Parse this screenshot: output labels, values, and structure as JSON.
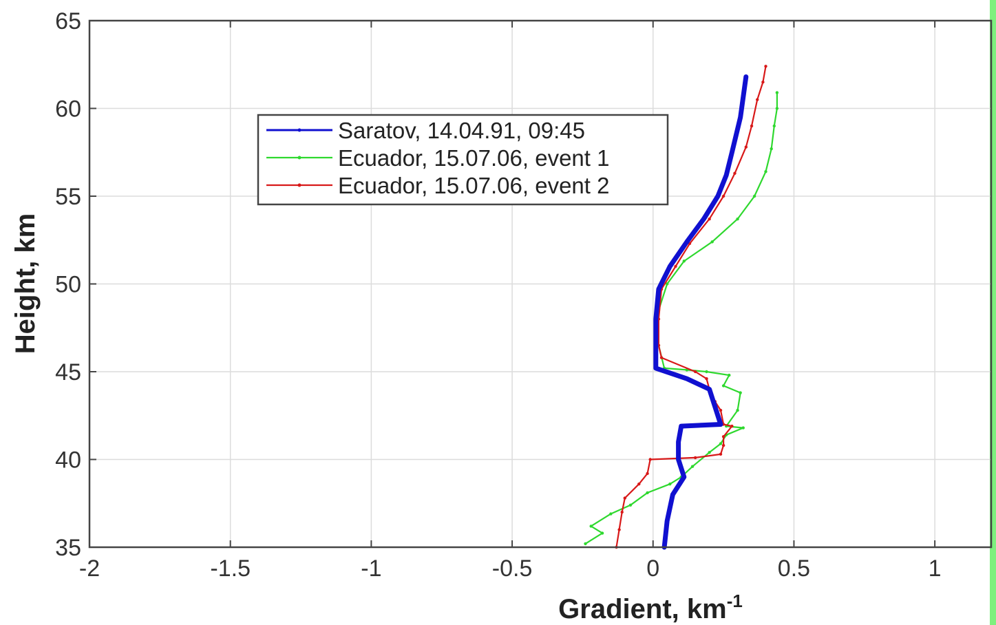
{
  "chart_data": {
    "type": "line",
    "xlabel": "Gradient, km",
    "xlabel_superscript": "-1",
    "ylabel": "Height, km",
    "xlim": [
      -2,
      1.2
    ],
    "ylim": [
      35,
      65
    ],
    "xticks": [
      -2,
      -1.5,
      -1,
      -0.5,
      0,
      0.5,
      1
    ],
    "xtick_labels": [
      "-2",
      "-1.5",
      "-1",
      "-0.5",
      "0",
      "0.5",
      "1"
    ],
    "yticks": [
      35,
      40,
      45,
      50,
      55,
      60,
      65
    ],
    "ytick_labels": [
      "35",
      "40",
      "45",
      "50",
      "55",
      "60",
      "65"
    ],
    "grid": true,
    "legend_position": "upper-left-center",
    "series": [
      {
        "name": "Saratov, 14.04.91, 09:45",
        "color": "#1010d0",
        "points": [
          [
            0.04,
            35.0
          ],
          [
            0.05,
            36.5
          ],
          [
            0.07,
            38.0
          ],
          [
            0.11,
            39.0
          ],
          [
            0.09,
            40.0
          ],
          [
            0.09,
            41.0
          ],
          [
            0.1,
            41.9
          ],
          [
            0.24,
            42.0
          ],
          [
            0.22,
            43.0
          ],
          [
            0.2,
            44.0
          ],
          [
            0.12,
            44.6
          ],
          [
            0.01,
            45.2
          ],
          [
            0.01,
            46.5
          ],
          [
            0.01,
            48.0
          ],
          [
            0.02,
            49.7
          ],
          [
            0.06,
            51.0
          ],
          [
            0.12,
            52.4
          ],
          [
            0.18,
            53.7
          ],
          [
            0.23,
            55.0
          ],
          [
            0.26,
            56.2
          ],
          [
            0.28,
            57.5
          ],
          [
            0.31,
            59.5
          ],
          [
            0.33,
            61.8
          ]
        ]
      },
      {
        "name": "Ecuador, 15.07.06, event 1",
        "color": "#2ed82e",
        "points": [
          [
            -0.24,
            35.2
          ],
          [
            -0.18,
            35.8
          ],
          [
            -0.22,
            36.2
          ],
          [
            -0.15,
            36.9
          ],
          [
            -0.08,
            37.4
          ],
          [
            -0.02,
            38.1
          ],
          [
            0.06,
            38.6
          ],
          [
            0.1,
            39.0
          ],
          [
            0.14,
            39.6
          ],
          [
            0.2,
            40.4
          ],
          [
            0.24,
            40.9
          ],
          [
            0.26,
            41.4
          ],
          [
            0.32,
            41.8
          ],
          [
            0.26,
            41.9
          ],
          [
            0.3,
            42.8
          ],
          [
            0.31,
            43.8
          ],
          [
            0.25,
            44.2
          ],
          [
            0.27,
            44.8
          ],
          [
            0.19,
            45.0
          ],
          [
            0.12,
            45.1
          ],
          [
            0.04,
            45.2
          ],
          [
            0.02,
            46.5
          ],
          [
            0.02,
            48.5
          ],
          [
            0.05,
            50.0
          ],
          [
            0.11,
            51.3
          ],
          [
            0.21,
            52.4
          ],
          [
            0.3,
            53.7
          ],
          [
            0.36,
            55.0
          ],
          [
            0.4,
            56.4
          ],
          [
            0.42,
            57.7
          ],
          [
            0.43,
            59.0
          ],
          [
            0.44,
            60.0
          ],
          [
            0.44,
            60.9
          ]
        ]
      },
      {
        "name": "Ecuador, 15.07.06, event 2",
        "color": "#d81818",
        "points": [
          [
            -0.13,
            35.0
          ],
          [
            -0.12,
            36.0
          ],
          [
            -0.11,
            37.0
          ],
          [
            -0.1,
            37.8
          ],
          [
            -0.05,
            38.6
          ],
          [
            -0.02,
            39.2
          ],
          [
            -0.01,
            40.0
          ],
          [
            0.15,
            40.1
          ],
          [
            0.24,
            40.3
          ],
          [
            0.25,
            40.8
          ],
          [
            0.25,
            41.3
          ],
          [
            0.28,
            41.9
          ],
          [
            0.25,
            42.0
          ],
          [
            0.24,
            42.8
          ],
          [
            0.22,
            43.3
          ],
          [
            0.2,
            44.0
          ],
          [
            0.19,
            44.6
          ],
          [
            0.15,
            45.0
          ],
          [
            0.03,
            45.8
          ],
          [
            0.02,
            46.5
          ],
          [
            0.02,
            48.0
          ],
          [
            0.03,
            49.7
          ],
          [
            0.08,
            51.0
          ],
          [
            0.13,
            52.3
          ],
          [
            0.2,
            53.7
          ],
          [
            0.25,
            55.0
          ],
          [
            0.29,
            56.3
          ],
          [
            0.33,
            57.8
          ],
          [
            0.35,
            59.0
          ],
          [
            0.37,
            60.5
          ],
          [
            0.39,
            61.5
          ],
          [
            0.4,
            62.4
          ]
        ]
      }
    ]
  }
}
